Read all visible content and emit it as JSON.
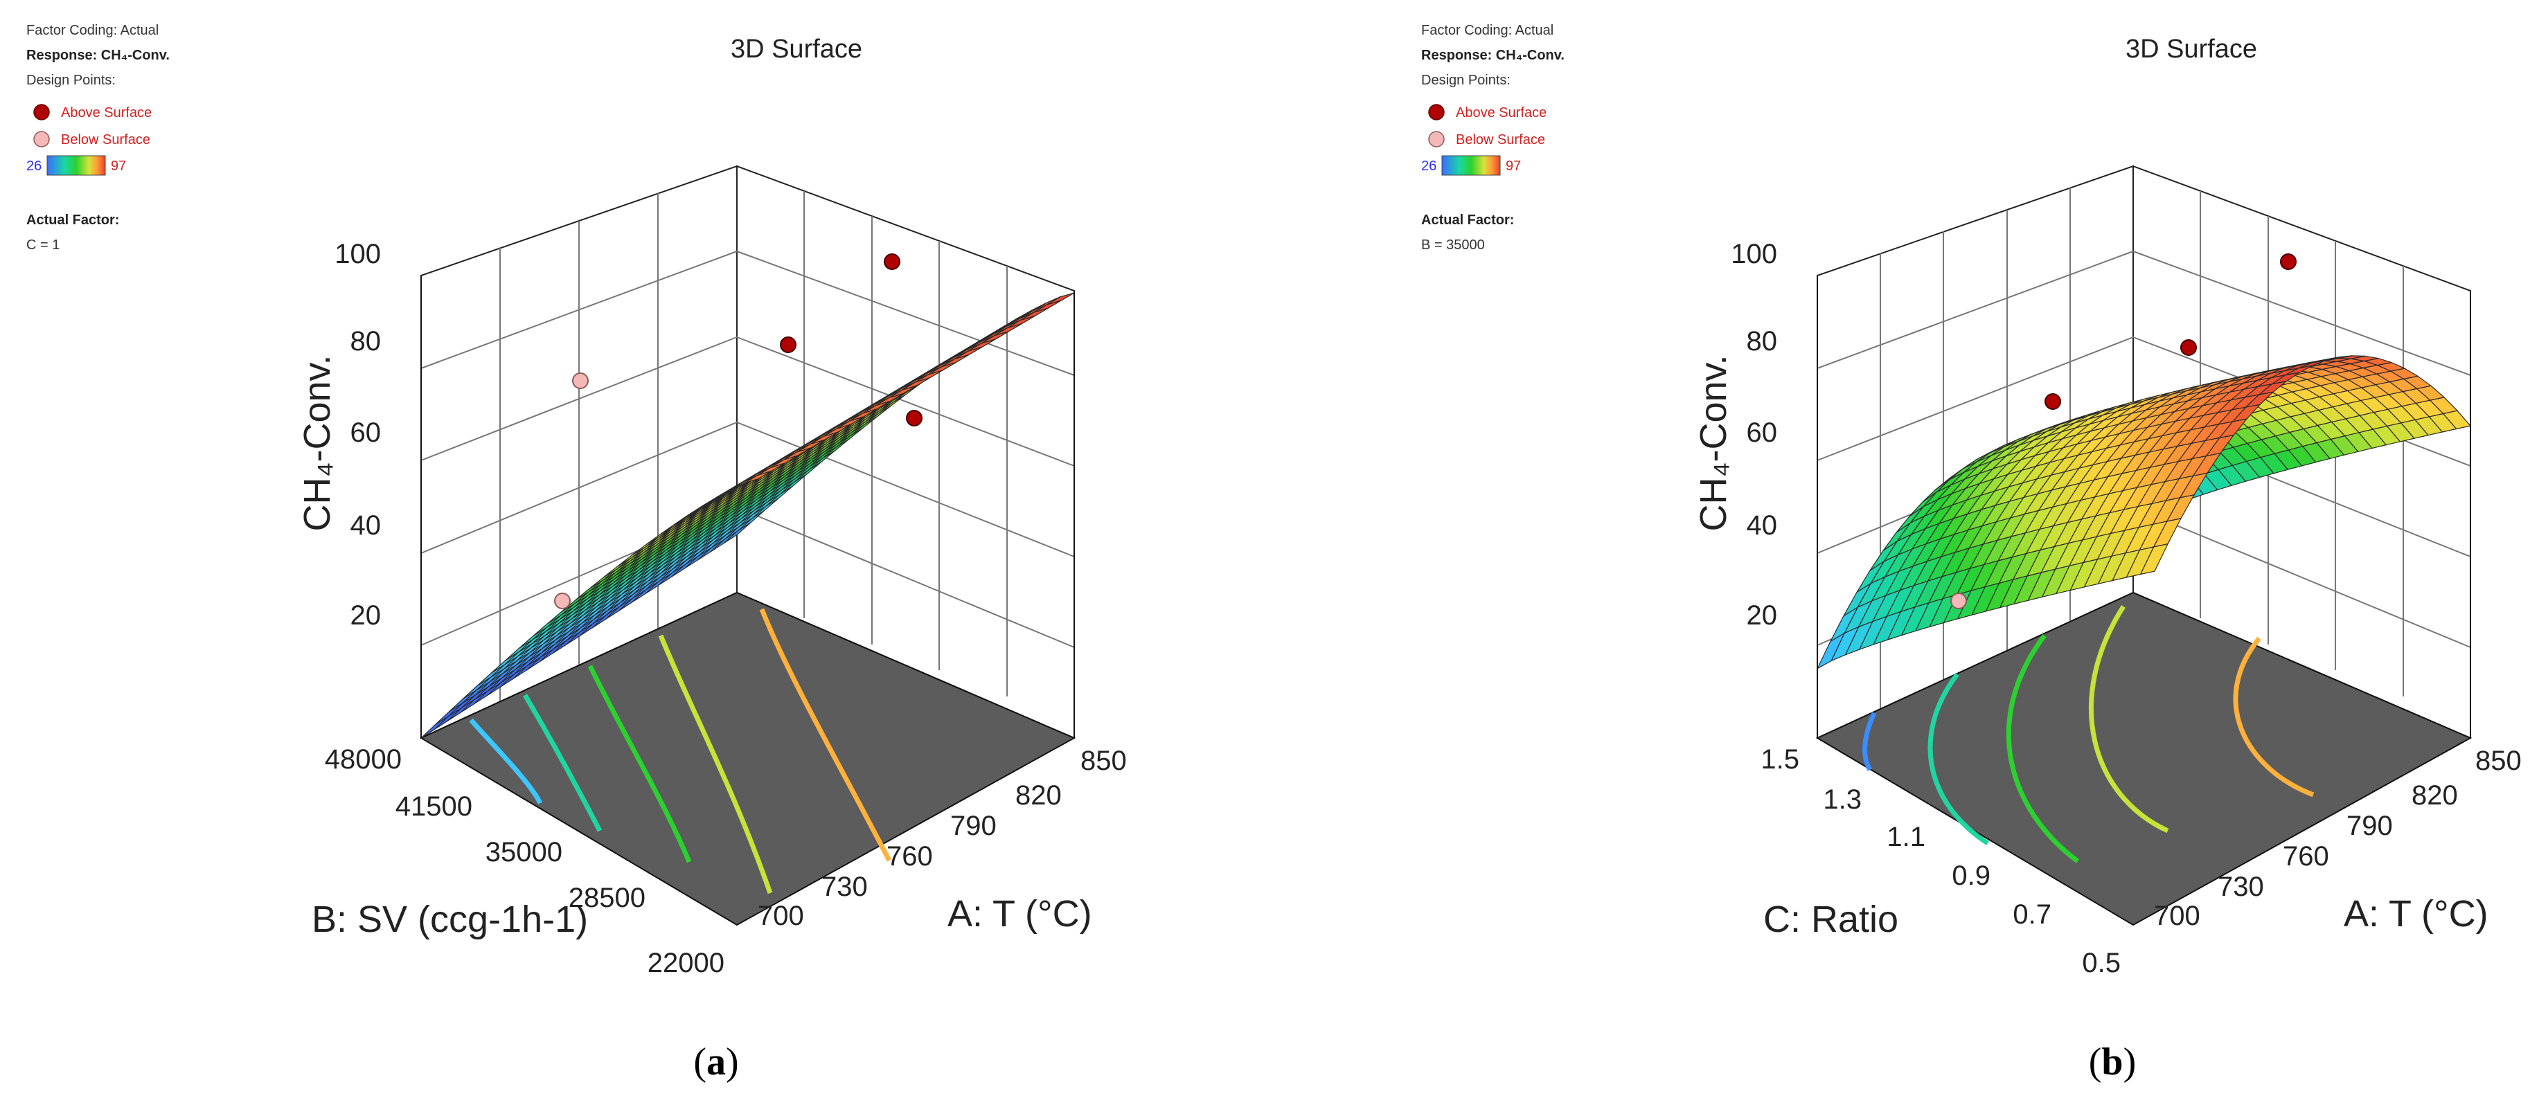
{
  "colors": {
    "floor": "#5c5c5c",
    "frame": "#000000",
    "grid": "#7a7a7a",
    "point_above": "#b00000",
    "point_below": "#f4b8b8",
    "legend_text_above": "#d21f1f",
    "legend_low_text": "#2c2cff",
    "legend_high_text": "#d21f1f",
    "colormap": [
      "#3b6cff",
      "#38c8ff",
      "#19d7a5",
      "#2ad12f",
      "#c6e33a",
      "#ffd23c",
      "#ff8a38",
      "#e8402e"
    ]
  },
  "panels": [
    {
      "title": "3D Surface",
      "caption": "a",
      "info": {
        "factor_coding": "Factor Coding: Actual",
        "response": "Response: CH₄-Conv.",
        "design_points": "Design Points:",
        "above": "Above Surface",
        "below": "Below Surface",
        "range_low": "26",
        "range_high": "97",
        "actual_factor_title": "Actual Factor:",
        "actual_factor_value": "C = 1"
      },
      "z_axis_label": "CH₄-Conv.",
      "x_axis_label": "A: T (°C)",
      "y_axis_label": "B: SV (ccg-1h-1)",
      "z_ticks": [
        "20",
        "40",
        "60",
        "80",
        "100"
      ],
      "x_ticks": [
        "700",
        "730",
        "760",
        "790",
        "820",
        "850"
      ],
      "y_ticks": [
        "22000",
        "28500",
        "35000",
        "41500",
        "48000"
      ]
    },
    {
      "title": "3D Surface",
      "caption": "b",
      "info": {
        "factor_coding": "Factor Coding: Actual",
        "response": "Response: CH₄-Conv.",
        "design_points": "Design Points:",
        "above": "Above Surface",
        "below": "Below Surface",
        "range_low": "26",
        "range_high": "97",
        "actual_factor_title": "Actual Factor:",
        "actual_factor_value": "B = 35000"
      },
      "z_axis_label": "CH₄-Conv.",
      "x_axis_label": "A: T (°C)",
      "y_axis_label": "C: Ratio",
      "z_ticks": [
        "20",
        "40",
        "60",
        "80",
        "100"
      ],
      "x_ticks": [
        "700",
        "730",
        "760",
        "790",
        "820",
        "850"
      ],
      "y_ticks": [
        "0.5",
        "0.7",
        "0.9",
        "1.1",
        "1.3",
        "1.5"
      ]
    }
  ],
  "chart_data": [
    {
      "type": "surface3d",
      "title": "3D Surface",
      "x": {
        "label": "A: T (°C)",
        "range": [
          700,
          850
        ],
        "ticks": [
          700,
          730,
          760,
          790,
          820,
          850
        ]
      },
      "y": {
        "label": "B: SV (ccg-1h-1)",
        "range": [
          22000,
          48000
        ],
        "ticks": [
          22000,
          28500,
          35000,
          41500,
          48000
        ]
      },
      "z": {
        "label": "CH₄-Conv.",
        "range": [
          20,
          100
        ],
        "ticks": [
          20,
          40,
          60,
          80,
          100
        ]
      },
      "surface_corners": [
        {
          "x": 700,
          "y": 22000,
          "z": 20
        },
        {
          "x": 850,
          "y": 22000,
          "z": 90
        },
        {
          "x": 700,
          "y": 48000,
          "z": 30
        },
        {
          "x": 850,
          "y": 48000,
          "z": 97
        }
      ],
      "design_points": [
        {
          "x": 850,
          "y": 48000,
          "z": 97,
          "position": "above"
        },
        {
          "x": 790,
          "y": 35000,
          "z": 80,
          "position": "above"
        },
        {
          "x": 850,
          "y": 22000,
          "z": 66,
          "position": "above"
        },
        {
          "x": 700,
          "y": 48000,
          "z": 68,
          "position": "below"
        },
        {
          "x": 700,
          "y": 22000,
          "z": 26,
          "position": "below"
        }
      ],
      "color_range": [
        26,
        97
      ],
      "grid": true,
      "contour_levels": [
        30,
        40,
        50,
        60,
        70,
        80
      ]
    },
    {
      "type": "surface3d",
      "title": "3D Surface",
      "x": {
        "label": "A: T (°C)",
        "range": [
          700,
          850
        ],
        "ticks": [
          700,
          730,
          760,
          790,
          820,
          850
        ]
      },
      "y": {
        "label": "C: Ratio",
        "range": [
          0.5,
          1.5
        ],
        "ticks": [
          0.5,
          0.7,
          0.9,
          1.1,
          1.3,
          1.5
        ]
      },
      "z": {
        "label": "CH₄-Conv.",
        "range": [
          20,
          100
        ],
        "ticks": [
          20,
          40,
          60,
          80,
          100
        ]
      },
      "surface_corners": [
        {
          "x": 700,
          "y": 0.5,
          "z": 32
        },
        {
          "x": 850,
          "y": 0.5,
          "z": 74
        },
        {
          "x": 700,
          "y": 1.5,
          "z": 32
        },
        {
          "x": 850,
          "y": 1.5,
          "z": 74
        }
      ],
      "surface_peak": {
        "y": 1.0,
        "z_at_x850": 97,
        "z_at_x700": 55
      },
      "design_points": [
        {
          "x": 850,
          "y": 1.5,
          "z": 97,
          "position": "above"
        },
        {
          "x": 790,
          "y": 1.0,
          "z": 85,
          "position": "above"
        },
        {
          "x": 730,
          "y": 1.1,
          "z": 72,
          "position": "above"
        },
        {
          "x": 700,
          "y": 0.5,
          "z": 26,
          "position": "below"
        }
      ],
      "color_range": [
        26,
        97
      ],
      "grid": true,
      "contour_levels": [
        30,
        40,
        50,
        60,
        70,
        80
      ]
    }
  ]
}
